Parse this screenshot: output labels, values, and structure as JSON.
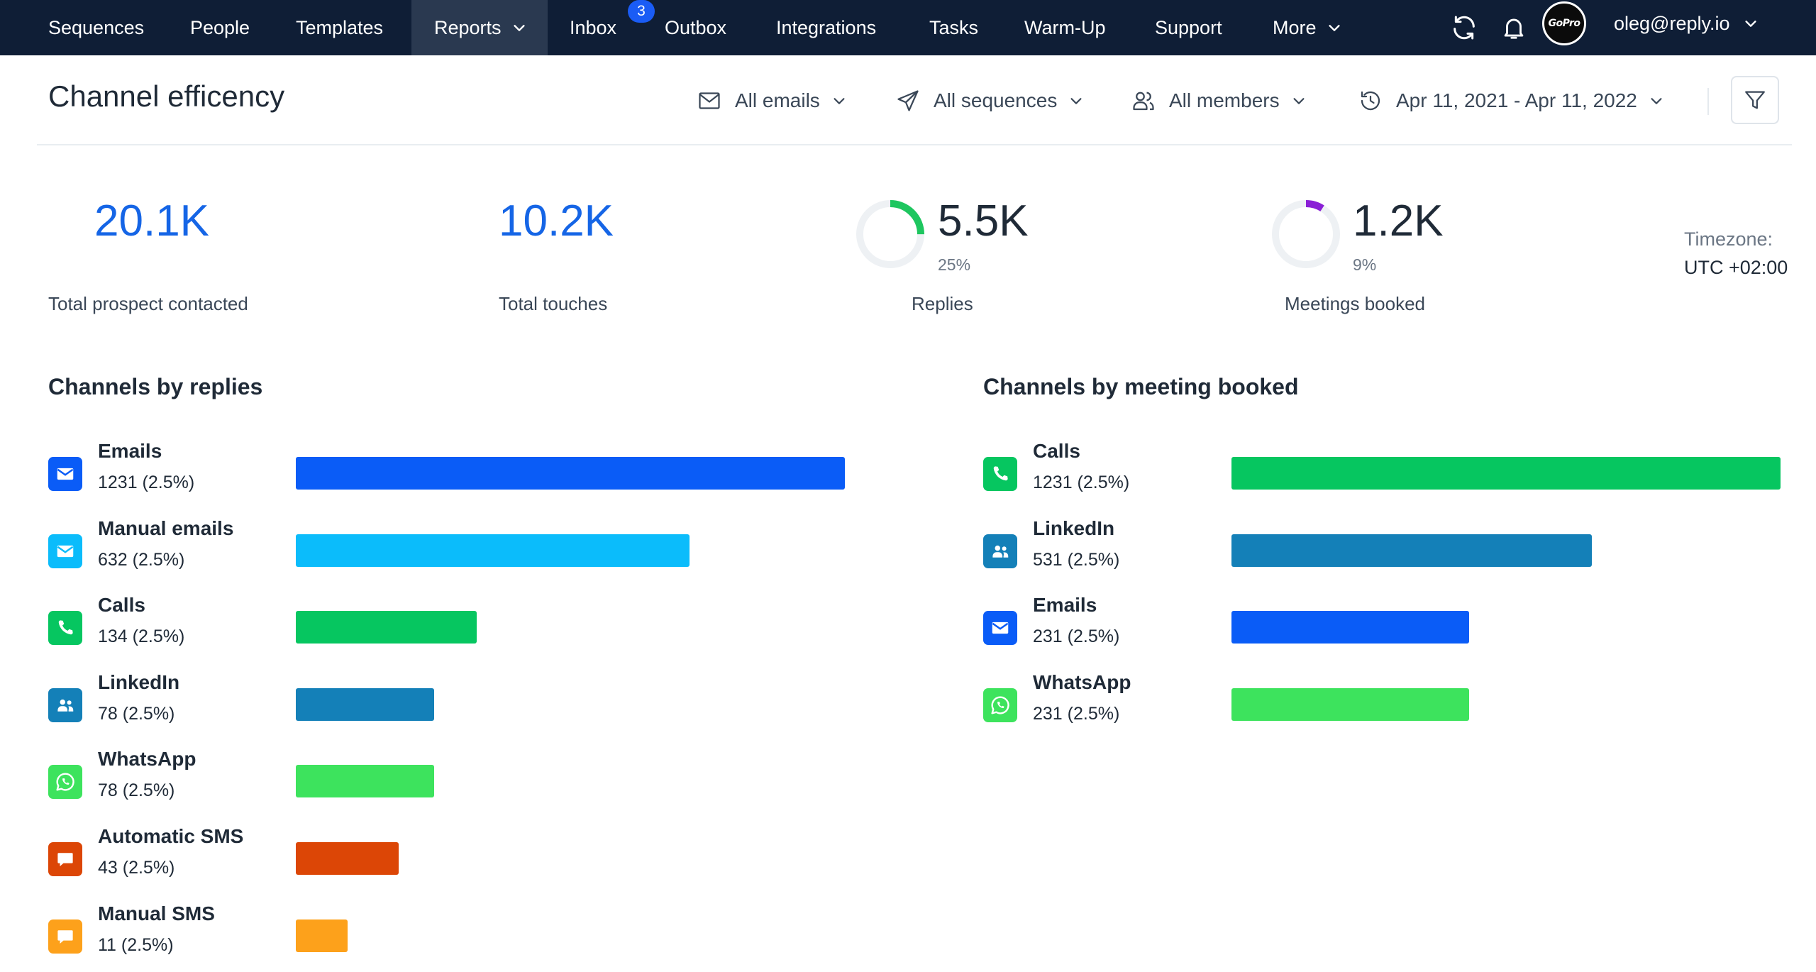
{
  "nav": {
    "items": [
      {
        "label": "Sequences"
      },
      {
        "label": "People"
      },
      {
        "label": "Templates"
      },
      {
        "label": "Reports"
      },
      {
        "label": "Inbox"
      },
      {
        "label": "Outbox"
      },
      {
        "label": "Integrations"
      },
      {
        "label": "Tasks"
      },
      {
        "label": "Warm-Up"
      },
      {
        "label": "Support"
      },
      {
        "label": "More"
      }
    ],
    "active": "Reports",
    "inbox_badge": "3",
    "avatar_text": "GoPro",
    "user_email": "oleg@reply.io"
  },
  "header": {
    "title": "Channel efficency",
    "filters": {
      "emails": "All emails",
      "sequences": "All sequences",
      "members": "All members",
      "date_range": "Apr 11, 2021 - Apr 11, 2022"
    }
  },
  "stats": {
    "prospects": {
      "value": "20.1K",
      "label": "Total prospect contacted"
    },
    "touches": {
      "value": "10.2K",
      "label": "Total touches"
    },
    "replies": {
      "value": "5.5K",
      "percent": "25%",
      "fraction": 0.25,
      "label": "Replies",
      "color": "#1ec65f"
    },
    "meetings": {
      "value": "1.2K",
      "percent": "9%",
      "fraction": 0.09,
      "label": "Meetings booked",
      "color": "#8a1fd6"
    },
    "timezone_label": "Timezone:",
    "timezone_value": "UTC +02:00"
  },
  "channels_by_replies": {
    "title": "Channels by replies",
    "items": [
      {
        "name": "Emails",
        "count": "1231 (2.5%)",
        "value": 1231,
        "icon": "email-icon",
        "color": "#0a5cf7"
      },
      {
        "name": "Manual emails",
        "count": "632 (2.5%)",
        "value": 632,
        "icon": "email-icon",
        "color": "#0bbcfb"
      },
      {
        "name": "Calls",
        "count": "134 (2.5%)",
        "value": 134,
        "icon": "phone-icon",
        "color": "#06c660"
      },
      {
        "name": "LinkedIn",
        "count": "78 (2.5%)",
        "value": 78,
        "icon": "people-icon",
        "color": "#1480b8"
      },
      {
        "name": "WhatsApp",
        "count": "78 (2.5%)",
        "value": 78,
        "icon": "whatsapp-icon",
        "color": "#3de35d"
      },
      {
        "name": "Automatic SMS",
        "count": "43 (2.5%)",
        "value": 43,
        "icon": "chat-icon",
        "color": "#dc4606"
      },
      {
        "name": "Manual SMS",
        "count": "11 (2.5%)",
        "value": 11,
        "icon": "chat-icon",
        "color": "#fda11b"
      }
    ]
  },
  "channels_by_meetings": {
    "title": "Channels by meeting booked",
    "items": [
      {
        "name": "Calls",
        "count": "1231 (2.5%)",
        "value": 1231,
        "icon": "phone-icon",
        "color": "#06c660"
      },
      {
        "name": "LinkedIn",
        "count": "531 (2.5%)",
        "value": 531,
        "icon": "people-icon",
        "color": "#1480b8"
      },
      {
        "name": "Emails",
        "count": "231 (2.5%)",
        "value": 231,
        "icon": "email-icon",
        "color": "#0a5cf7"
      },
      {
        "name": "WhatsApp",
        "count": "231 (2.5%)",
        "value": 231,
        "icon": "whatsapp-icon",
        "color": "#3de35d"
      }
    ]
  },
  "chart_data": [
    {
      "type": "bar",
      "title": "Channels by replies",
      "categories": [
        "Emails",
        "Manual emails",
        "Calls",
        "LinkedIn",
        "WhatsApp",
        "Automatic SMS",
        "Manual SMS"
      ],
      "values": [
        1231,
        632,
        134,
        78,
        78,
        43,
        11
      ]
    },
    {
      "type": "bar",
      "title": "Channels by meeting booked",
      "categories": [
        "Calls",
        "LinkedIn",
        "Emails",
        "WhatsApp"
      ],
      "values": [
        1231,
        531,
        231,
        231
      ]
    }
  ]
}
